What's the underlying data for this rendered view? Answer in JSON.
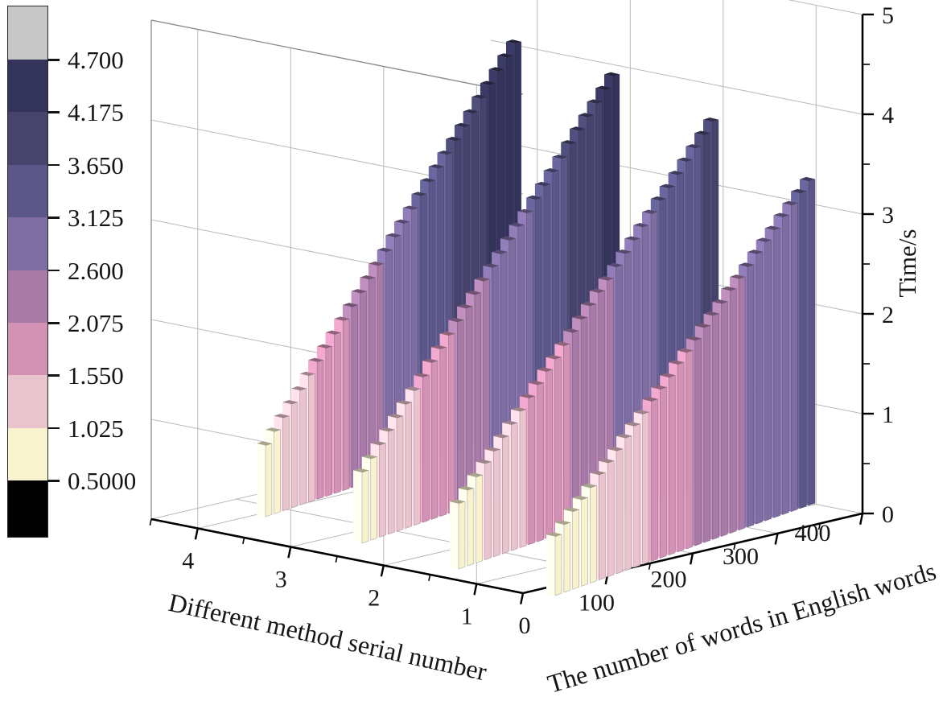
{
  "chart_data": {
    "type": "bar",
    "chart_kind": "3d-column-ribbons",
    "title": "",
    "x_axis": {
      "label": "The number of words in English words",
      "ticks": [
        0,
        100,
        200,
        300,
        400
      ],
      "range": [
        0,
        400
      ],
      "minor_step": 50
    },
    "series_axis": {
      "label": "Different method serial number",
      "ticks": [
        4,
        3,
        2,
        1
      ],
      "range": [
        0.5,
        4.5
      ],
      "minor_step": 0.5
    },
    "value_axis": {
      "label": "Time/s",
      "ticks": [
        0,
        1,
        2,
        3,
        4,
        5
      ],
      "range": [
        0,
        5
      ],
      "minor_step": 0.5
    },
    "grid": true,
    "words": [
      60,
      72,
      83,
      95,
      107,
      118,
      130,
      142,
      153,
      165,
      177,
      188,
      200,
      212,
      223,
      235,
      247,
      258,
      270,
      282,
      293,
      305,
      317,
      328,
      340,
      352,
      363,
      375,
      387,
      400
    ],
    "series": [
      {
        "name": "Method 1",
        "method": 1,
        "values": [
          0.6,
          0.69,
          0.79,
          0.88,
          0.97,
          1.07,
          1.16,
          1.25,
          1.35,
          1.44,
          1.53,
          1.63,
          1.72,
          1.81,
          1.91,
          2.0,
          2.09,
          2.19,
          2.28,
          2.37,
          2.47,
          2.56,
          2.65,
          2.75,
          2.84,
          2.93,
          3.03,
          3.12,
          3.21,
          3.3
        ]
      },
      {
        "name": "Method 2",
        "method": 2,
        "values": [
          0.7,
          0.81,
          0.92,
          1.03,
          1.13,
          1.24,
          1.35,
          1.46,
          1.57,
          1.68,
          1.79,
          1.89,
          2.0,
          2.11,
          2.22,
          2.33,
          2.44,
          2.54,
          2.65,
          2.76,
          2.87,
          2.98,
          3.09,
          3.2,
          3.3,
          3.41,
          3.52,
          3.63,
          3.74,
          3.85
        ]
      },
      {
        "name": "Method 3",
        "method": 3,
        "values": [
          0.8,
          0.92,
          1.04,
          1.16,
          1.28,
          1.4,
          1.52,
          1.64,
          1.77,
          1.89,
          2.01,
          2.13,
          2.25,
          2.37,
          2.49,
          2.61,
          2.73,
          2.85,
          2.97,
          3.09,
          3.21,
          3.33,
          3.45,
          3.57,
          3.7,
          3.82,
          3.94,
          4.06,
          4.18,
          4.3
        ]
      },
      {
        "name": "Method 4",
        "method": 4,
        "values": [
          0.85,
          0.98,
          1.11,
          1.24,
          1.37,
          1.51,
          1.64,
          1.77,
          1.9,
          2.03,
          2.16,
          2.29,
          2.42,
          2.55,
          2.68,
          2.82,
          2.95,
          3.08,
          3.21,
          3.34,
          3.47,
          3.6,
          3.73,
          3.86,
          3.99,
          4.13,
          4.26,
          4.39,
          4.52,
          4.65
        ]
      }
    ],
    "colormap": {
      "thresholds": [
        0.5,
        1.025,
        1.55,
        2.075,
        2.6,
        3.125,
        3.65,
        4.175,
        4.7
      ],
      "band_colors_low_to_high": [
        "#000000",
        "#f8f2cf",
        "#eac4cc",
        "#d292b4",
        "#a77ba6",
        "#7d6da0",
        "#5b5889",
        "#46446d",
        "#34335a",
        "#c7c7c7"
      ]
    }
  },
  "colorbar": {
    "labels_top_to_bottom": [
      "4.700",
      "4.175",
      "3.650",
      "3.125",
      "2.600",
      "2.075",
      "1.550",
      "1.025",
      "0.5000"
    ],
    "colors_top_to_bottom": [
      "#c7c7c7",
      "#34335a",
      "#46446d",
      "#5b5889",
      "#7d6da0",
      "#a77ba6",
      "#d292b4",
      "#eac4cc",
      "#f8f2cf",
      "#000000"
    ]
  }
}
